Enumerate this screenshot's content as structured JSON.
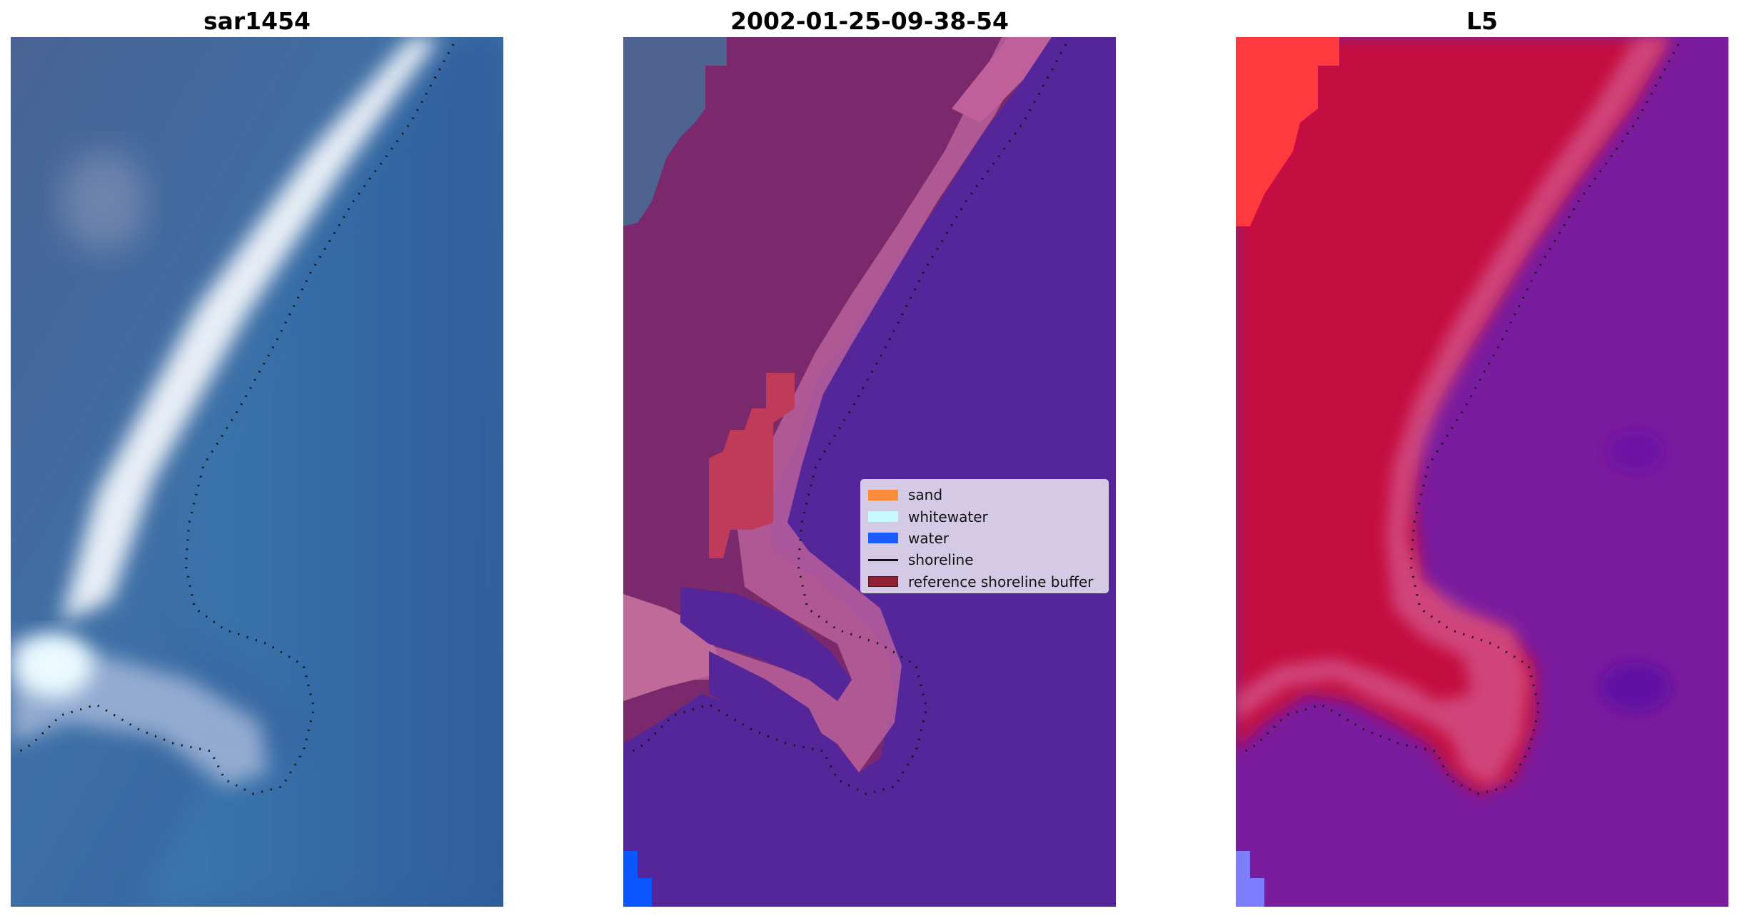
{
  "panels": [
    {
      "title": "sar1454"
    },
    {
      "title": "2002-01-25-09-38-54"
    },
    {
      "title": "L5"
    }
  ],
  "legend": {
    "items": [
      {
        "label": "sand",
        "color": "#ff8c3a",
        "kind": "patch"
      },
      {
        "label": "whitewater",
        "color": "#c8f8ff",
        "kind": "patch"
      },
      {
        "label": "water",
        "color": "#1a5cff",
        "kind": "patch"
      },
      {
        "label": "shoreline",
        "color": "#111111",
        "kind": "line"
      },
      {
        "label": "reference shoreline buffer",
        "color": "#8c2232",
        "kind": "patch"
      }
    ]
  },
  "colors": {
    "rgb_water": "#2f6aa8",
    "rgb_sand": "#e8eef4",
    "class_water": "#5a2a9a",
    "class_sand": "#7a2a6a",
    "class_buffer": "#b86090",
    "mndwi_land": "#c01040",
    "mndwi_water": "#7a1aa0"
  }
}
